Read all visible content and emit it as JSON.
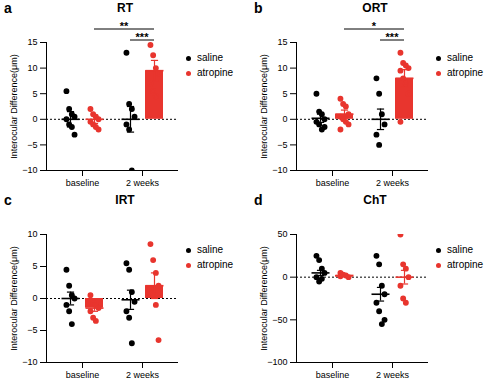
{
  "chart_data": [
    {
      "type": "bar",
      "panel": "a",
      "title": "RT",
      "ylabel": "Interocular Difference(μm)",
      "categories": [
        "baseline",
        "2 weeks"
      ],
      "ylim": [
        -10,
        15
      ],
      "yticks": [
        -10,
        -5,
        0,
        5,
        10,
        15
      ],
      "series": [
        {
          "name": "saline",
          "type": "scatter",
          "color": "#000000",
          "values": [
            0,
            0
          ],
          "errors": [
            1.5,
            2.5
          ],
          "points": [
            [
              5.5,
              2,
              1,
              0.5,
              0,
              -1,
              -1.5,
              -3
            ],
            [
              13,
              3,
              2,
              0.5,
              -1,
              -2,
              -10
            ]
          ]
        },
        {
          "name": "atropine",
          "type": "bar",
          "color": "#e8352e",
          "values": [
            0,
            9.5
          ],
          "errors": [
            0.8,
            2
          ],
          "points": [
            [
              2,
              1,
              0.5,
              0,
              -0.5,
              -1,
              -1.5,
              -2
            ],
            [
              14.5,
              12.5,
              10,
              9,
              7,
              5.5,
              4.5
            ]
          ]
        }
      ],
      "significance": [
        {
          "text": "**",
          "from": [
            "baseline",
            "atropine"
          ],
          "to": [
            "2 weeks",
            "atropine"
          ]
        },
        {
          "text": "***",
          "from": [
            "2 weeks",
            "saline"
          ],
          "to": [
            "2 weeks",
            "atropine"
          ]
        }
      ]
    },
    {
      "type": "bar",
      "panel": "b",
      "title": "ORT",
      "ylabel": "Interocular Difference(μm)",
      "categories": [
        "baseline",
        "2 weeks"
      ],
      "ylim": [
        -10,
        15
      ],
      "yticks": [
        -10,
        -5,
        0,
        5,
        10,
        15
      ],
      "series": [
        {
          "name": "saline",
          "type": "scatter",
          "color": "#000000",
          "values": [
            0.2,
            0
          ],
          "errors": [
            0.8,
            2
          ],
          "points": [
            [
              5,
              1.5,
              1,
              0,
              -0.5,
              -1,
              -2,
              -1.5
            ],
            [
              8,
              5,
              1,
              -1,
              -3,
              -5
            ]
          ]
        },
        {
          "name": "atropine",
          "type": "bar",
          "color": "#e8352e",
          "values": [
            1,
            8
          ],
          "errors": [
            0.8,
            1.7
          ],
          "points": [
            [
              4,
              3,
              2.5,
              1,
              0.5,
              0,
              -0.5,
              -1,
              -2
            ],
            [
              13,
              11,
              10.5,
              10,
              9.5,
              8,
              7,
              5,
              -0.5
            ]
          ]
        }
      ],
      "significance": [
        {
          "text": "*",
          "from": [
            "baseline",
            "atropine"
          ],
          "to": [
            "2 weeks",
            "atropine"
          ]
        },
        {
          "text": "***",
          "from": [
            "2 weeks",
            "saline"
          ],
          "to": [
            "2 weeks",
            "atropine"
          ]
        }
      ]
    },
    {
      "type": "bar",
      "panel": "c",
      "title": "IRT",
      "ylabel": "Interocular Difference(μm)",
      "categories": [
        "baseline",
        "2 weeks"
      ],
      "ylim": [
        -10,
        10
      ],
      "yticks": [
        -10,
        -5,
        0,
        5,
        10
      ],
      "series": [
        {
          "name": "saline",
          "type": "scatter",
          "color": "#000000",
          "values": [
            0,
            -0.2
          ],
          "errors": [
            1,
            1.5
          ],
          "points": [
            [
              4.5,
              2,
              0.5,
              0,
              -1,
              -2,
              -4
            ],
            [
              5.5,
              4.5,
              1,
              -0.5,
              -2,
              -3,
              -7
            ]
          ]
        },
        {
          "name": "atropine",
          "type": "bar",
          "color": "#e8352e",
          "values": [
            -1.5,
            2
          ],
          "errors": [
            0.5,
            2
          ],
          "points": [
            [
              0.5,
              -0.5,
              -1,
              -1.5,
              -2,
              -3,
              -3.5
            ],
            [
              8.5,
              6,
              4,
              2,
              1.5,
              0.5,
              -1,
              -6.5
            ]
          ]
        }
      ],
      "significance": []
    },
    {
      "type": "bar",
      "panel": "d",
      "title": "ChT",
      "ylabel": "Interocular Difference(μm)",
      "categories": [
        "baseline",
        "2 weeks"
      ],
      "ylim": [
        -100,
        50
      ],
      "yticks": [
        -100,
        -50,
        0,
        50
      ],
      "series": [
        {
          "name": "saline",
          "type": "scatter",
          "color": "#000000",
          "values": [
            5,
            -20
          ],
          "errors": [
            3,
            8
          ],
          "points": [
            [
              25,
              20,
              10,
              5,
              0,
              -5,
              -2
            ],
            [
              25,
              15,
              -10,
              -20,
              -30,
              -40,
              -55,
              -50
            ]
          ]
        },
        {
          "name": "atropine",
          "type": "bar",
          "color": "#e8352e",
          "values": [
            2,
            0
          ],
          "errors": [
            1,
            8
          ],
          "points": [
            [
              5,
              3,
              2,
              0,
              1
            ],
            [
              50,
              15,
              10,
              0,
              -10,
              -25,
              -30
            ]
          ]
        }
      ],
      "significance": []
    }
  ]
}
